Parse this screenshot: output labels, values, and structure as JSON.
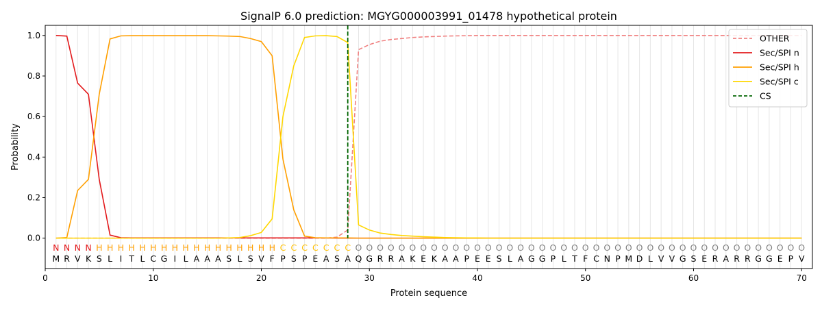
{
  "chart_data": {
    "type": "line",
    "title": "SignalP 6.0 prediction: MGYG000003991_01478 hypothetical protein",
    "xlabel": "Protein sequence",
    "ylabel": "Probability",
    "xlim": [
      0,
      71
    ],
    "ylim": [
      -0.15,
      1.05
    ],
    "xticks": [
      0,
      10,
      20,
      30,
      40,
      50,
      60,
      70
    ],
    "yticks": [
      0.0,
      0.2,
      0.4,
      0.6,
      0.8,
      1.0
    ],
    "xtick_labels": [
      "0",
      "10",
      "20",
      "30",
      "40",
      "50",
      "60",
      "70"
    ],
    "ytick_labels": [
      "0.0",
      "0.2",
      "0.4",
      "0.6",
      "0.8",
      "1.0"
    ],
    "grid": "vertical lines at each residue",
    "legend_position": "top-right",
    "sequence": [
      "M",
      "R",
      "V",
      "K",
      "S",
      "L",
      "I",
      "T",
      "L",
      "C",
      "G",
      "I",
      "L",
      "A",
      "A",
      "A",
      "S",
      "L",
      "S",
      "V",
      "F",
      "P",
      "S",
      "P",
      "E",
      "A",
      "S",
      "A",
      "Q",
      "G",
      "R",
      "R",
      "A",
      "K",
      "E",
      "K",
      "A",
      "A",
      "P",
      "E",
      "E",
      "S",
      "L",
      "A",
      "G",
      "G",
      "P",
      "L",
      "T",
      "F",
      "C",
      "N",
      "P",
      "M",
      "D",
      "L",
      "V",
      "V",
      "G",
      "S",
      "E",
      "R",
      "A",
      "R",
      "R",
      "G",
      "G",
      "E",
      "P",
      "V"
    ],
    "labels": [
      "N",
      "N",
      "N",
      "N",
      "H",
      "H",
      "H",
      "H",
      "H",
      "H",
      "H",
      "H",
      "H",
      "H",
      "H",
      "H",
      "H",
      "H",
      "H",
      "H",
      "H",
      "C",
      "C",
      "C",
      "C",
      "C",
      "C",
      "C",
      "O",
      "O",
      "O",
      "O",
      "O",
      "O",
      "O",
      "O",
      "O",
      "O",
      "O",
      "O",
      "O",
      "O",
      "O",
      "O",
      "O",
      "O",
      "O",
      "O",
      "O",
      "O",
      "O",
      "O",
      "O",
      "O",
      "O",
      "O",
      "O",
      "O",
      "O",
      "O",
      "O",
      "O",
      "O",
      "O",
      "O",
      "O",
      "O",
      "O",
      "O",
      "O"
    ],
    "label_colors": {
      "N": "#e31a1c",
      "H": "#ff9f00",
      "C": "#ffc000",
      "O": "#808080"
    },
    "cs_position": 28,
    "series": [
      {
        "name": "OTHER",
        "color": "#f08080",
        "dash": true,
        "values": [
          0,
          0,
          0,
          0,
          0,
          0,
          0,
          0,
          0,
          0,
          0,
          0,
          0,
          0,
          0,
          0,
          0,
          0,
          0,
          0,
          0,
          0,
          0,
          0,
          0,
          0,
          0.005,
          0.04,
          0.93,
          0.955,
          0.972,
          0.98,
          0.985,
          0.99,
          0.993,
          0.995,
          0.997,
          0.998,
          0.999,
          1,
          1,
          1,
          1,
          1,
          1,
          1,
          1,
          1,
          1,
          1,
          1,
          1,
          1,
          1,
          1,
          1,
          1,
          1,
          1,
          1,
          1,
          1,
          1,
          1,
          1,
          1,
          1,
          1,
          1,
          1
        ]
      },
      {
        "name": "Sec/SPI n",
        "color": "#e31a1c",
        "dash": false,
        "values": [
          1.0,
          0.997,
          0.765,
          0.71,
          0.29,
          0.015,
          0.002,
          0.001,
          0.001,
          0.001,
          0.001,
          0.001,
          0.001,
          0.001,
          0.001,
          0.001,
          0.001,
          0.001,
          0.001,
          0.001,
          0.001,
          0.001,
          0.001,
          0.001,
          0.001,
          0.001,
          0,
          0,
          0,
          0,
          0,
          0,
          0,
          0,
          0,
          0,
          0,
          0,
          0,
          0,
          0,
          0,
          0,
          0,
          0,
          0,
          0,
          0,
          0,
          0,
          0,
          0,
          0,
          0,
          0,
          0,
          0,
          0,
          0,
          0,
          0,
          0,
          0,
          0,
          0,
          0,
          0,
          0,
          0,
          0
        ]
      },
      {
        "name": "Sec/SPI h",
        "color": "#ff9f00",
        "dash": false,
        "values": [
          0.0,
          0.003,
          0.235,
          0.29,
          0.71,
          0.983,
          0.998,
          0.999,
          0.999,
          0.999,
          0.999,
          0.999,
          0.999,
          0.999,
          0.999,
          0.998,
          0.997,
          0.995,
          0.985,
          0.97,
          0.9,
          0.39,
          0.14,
          0.01,
          0.002,
          0.001,
          0.001,
          0.001,
          0,
          0,
          0,
          0,
          0,
          0,
          0,
          0,
          0,
          0,
          0,
          0,
          0,
          0,
          0,
          0,
          0,
          0,
          0,
          0,
          0,
          0,
          0,
          0,
          0,
          0,
          0,
          0,
          0,
          0,
          0,
          0,
          0,
          0,
          0,
          0,
          0,
          0,
          0,
          0,
          0,
          0
        ]
      },
      {
        "name": "Sec/SPI c",
        "color": "#ffd700",
        "dash": false,
        "values": [
          0,
          0,
          0,
          0,
          0,
          0,
          0,
          0,
          0,
          0,
          0,
          0,
          0,
          0,
          0,
          0,
          0.001,
          0.003,
          0.012,
          0.028,
          0.095,
          0.6,
          0.85,
          0.99,
          0.998,
          0.999,
          0.995,
          0.965,
          0.065,
          0.04,
          0.025,
          0.018,
          0.013,
          0.01,
          0.007,
          0.005,
          0.003,
          0.002,
          0.001,
          0.001,
          0,
          0,
          0,
          0,
          0,
          0,
          0,
          0,
          0,
          0,
          0,
          0,
          0,
          0,
          0,
          0,
          0,
          0,
          0,
          0,
          0,
          0,
          0,
          0,
          0,
          0,
          0,
          0,
          0,
          0
        ]
      }
    ],
    "legend": [
      {
        "name": "OTHER",
        "color": "#f08080",
        "dash": true
      },
      {
        "name": "Sec/SPI n",
        "color": "#e31a1c",
        "dash": false
      },
      {
        "name": "Sec/SPI h",
        "color": "#ff9f00",
        "dash": false
      },
      {
        "name": "Sec/SPI c",
        "color": "#ffd700",
        "dash": false
      },
      {
        "name": "CS",
        "color": "#006400",
        "dash": true
      }
    ]
  }
}
